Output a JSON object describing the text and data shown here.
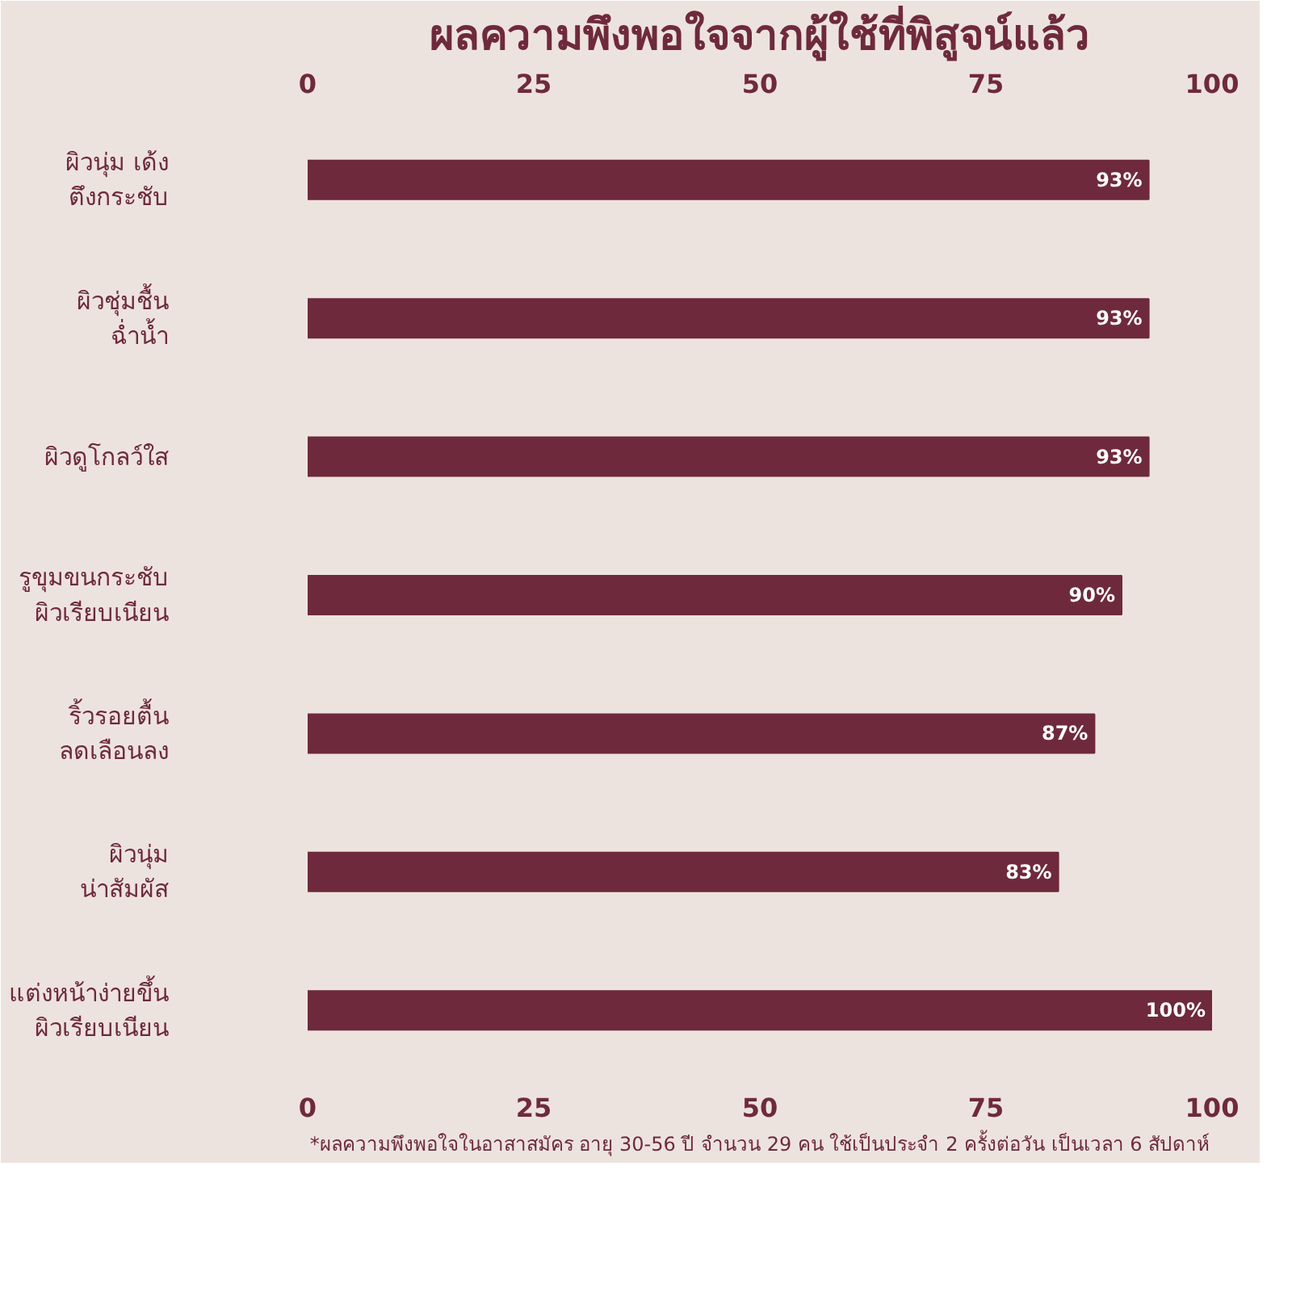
{
  "chart_data": {
    "type": "bar",
    "orientation": "horizontal",
    "title": "ผลความพึงพอใจจากผู้ใช้ที่พิสูจน์แล้ว",
    "categories": [
      "ผิวนุ่ม เด้ง\nตึงกระชับ",
      "ผิวชุ่มชื้น\nฉ่ำน้ำ",
      "ผิวดูโกลว์ใส",
      "รูขุมขนกระชับ\nผิวเรียบเนียน",
      "ริ้วรอยตื้น\nลดเลือนลง",
      "ผิวนุ่ม\nน่าสัมผัส",
      "แต่งหน้าง่ายขึ้น\nผิวเรียบเนียน"
    ],
    "values": [
      93,
      93,
      93,
      90,
      87,
      83,
      100
    ],
    "value_labels": [
      "93%",
      "93%",
      "93%",
      "90%",
      "87%",
      "83%",
      "100%"
    ],
    "color": "#6e2a3c",
    "xlim": [
      0,
      100
    ],
    "xticks": [
      0,
      25,
      50,
      75,
      100
    ],
    "x2lim": [
      0,
      100
    ],
    "x2ticks": [
      0,
      25,
      50,
      75,
      100
    ],
    "grid": false,
    "annotations": [
      "*ผลความพึงพอใจในอาสาสมัคร อายุ 30-56 ปี จำนวน 29 คน ใช้เป็นประจำ 2 ครั้งต่อวัน เป็นเวลา 6 สัปดาห์"
    ]
  }
}
